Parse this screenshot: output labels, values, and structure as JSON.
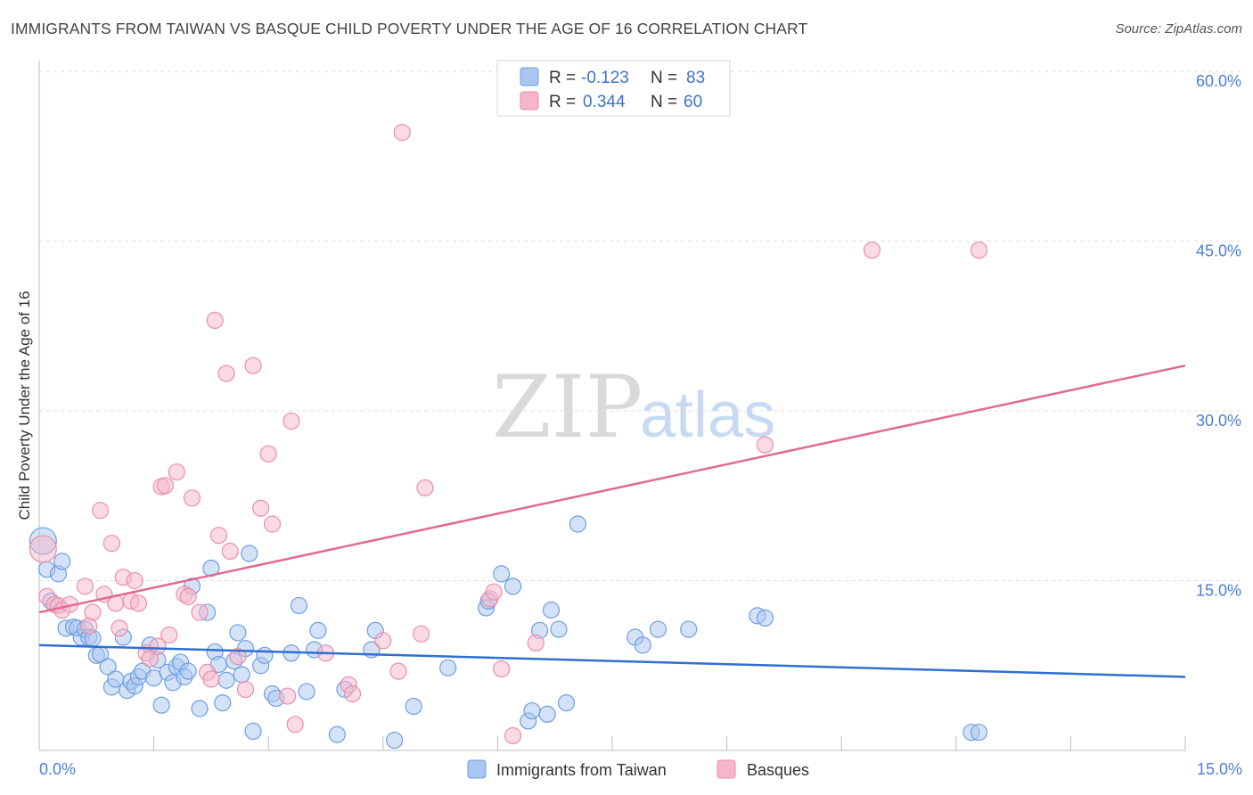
{
  "header": {
    "title": "IMMIGRANTS FROM TAIWAN VS BASQUE CHILD POVERTY UNDER THE AGE OF 16 CORRELATION CHART",
    "source": "Source: ZipAtlas.com"
  },
  "watermark": {
    "zip": "ZIP",
    "atlas": "atlas"
  },
  "legend": {
    "rows": [
      {
        "r_label": "R = ",
        "r_value": "-0.123",
        "n_label": "N = ",
        "n_value": "83",
        "color": "#a9c6f0"
      },
      {
        "r_label": "R = ",
        "r_value": "0.344",
        "n_label": "N = ",
        "n_value": "60",
        "color": "#f5b6c9"
      }
    ]
  },
  "bottom_legend": [
    {
      "label": "Immigrants from Taiwan",
      "color": "#a9c6f0"
    },
    {
      "label": "Basques",
      "color": "#f5b6c9"
    }
  ],
  "chart_data": {
    "type": "scatter",
    "title": "IMMIGRANTS FROM TAIWAN VS BASQUE CHILD POVERTY UNDER THE AGE OF 16 CORRELATION CHART",
    "xlabel": "",
    "ylabel": "Child Poverty Under the Age of 16",
    "xlim": [
      0,
      15
    ],
    "ylim": [
      0,
      60
    ],
    "x_tick_labels": [
      "0.0%",
      "15.0%"
    ],
    "y_ticks": [
      15,
      30,
      45,
      60
    ],
    "y_tick_labels": [
      "15.0%",
      "30.0%",
      "45.0%",
      "60.0%"
    ],
    "grid": true,
    "series": [
      {
        "name": "Immigrants from Taiwan",
        "color": "#6d9fe3",
        "fill": "#a9c6f0",
        "trend_color": "#2f6fd1",
        "trend": [
          [
            0,
            9.3
          ],
          [
            15,
            6.5
          ]
        ],
        "points": [
          [
            0.05,
            18.5
          ],
          [
            0.1,
            16.0
          ],
          [
            0.15,
            13.2
          ],
          [
            0.25,
            15.6
          ],
          [
            0.3,
            16.7
          ],
          [
            0.35,
            10.8
          ],
          [
            0.45,
            10.9
          ],
          [
            0.5,
            10.8
          ],
          [
            0.55,
            10.0
          ],
          [
            0.6,
            10.7
          ],
          [
            0.65,
            10.0
          ],
          [
            0.7,
            9.9
          ],
          [
            0.75,
            8.4
          ],
          [
            0.8,
            8.5
          ],
          [
            0.9,
            7.4
          ],
          [
            0.95,
            5.6
          ],
          [
            1.0,
            6.3
          ],
          [
            1.1,
            10.0
          ],
          [
            1.15,
            5.3
          ],
          [
            1.2,
            6.1
          ],
          [
            1.25,
            5.7
          ],
          [
            1.3,
            6.5
          ],
          [
            1.35,
            7.0
          ],
          [
            1.45,
            9.3
          ],
          [
            1.5,
            6.4
          ],
          [
            1.55,
            8.0
          ],
          [
            1.6,
            4.0
          ],
          [
            1.68,
            6.9
          ],
          [
            1.75,
            6.0
          ],
          [
            1.8,
            7.4
          ],
          [
            1.85,
            7.8
          ],
          [
            1.9,
            6.5
          ],
          [
            1.95,
            7.0
          ],
          [
            2.0,
            14.5
          ],
          [
            2.1,
            3.7
          ],
          [
            2.2,
            12.2
          ],
          [
            2.25,
            16.1
          ],
          [
            2.3,
            8.7
          ],
          [
            2.35,
            7.6
          ],
          [
            2.4,
            4.2
          ],
          [
            2.45,
            6.2
          ],
          [
            2.6,
            10.4
          ],
          [
            2.55,
            7.9
          ],
          [
            2.65,
            6.7
          ],
          [
            2.7,
            9.0
          ],
          [
            2.75,
            17.4
          ],
          [
            2.8,
            1.7
          ],
          [
            2.9,
            7.5
          ],
          [
            2.95,
            8.4
          ],
          [
            3.05,
            5.0
          ],
          [
            3.1,
            4.6
          ],
          [
            3.3,
            8.6
          ],
          [
            3.4,
            12.8
          ],
          [
            3.5,
            5.2
          ],
          [
            3.6,
            8.9
          ],
          [
            3.65,
            10.6
          ],
          [
            3.9,
            1.4
          ],
          [
            4.0,
            5.4
          ],
          [
            4.35,
            8.9
          ],
          [
            4.4,
            10.6
          ],
          [
            4.65,
            0.9
          ],
          [
            4.9,
            3.9
          ],
          [
            5.35,
            7.3
          ],
          [
            5.85,
            12.6
          ],
          [
            5.88,
            13.2
          ],
          [
            6.05,
            15.6
          ],
          [
            6.2,
            14.5
          ],
          [
            6.4,
            2.6
          ],
          [
            6.45,
            3.5
          ],
          [
            6.55,
            10.6
          ],
          [
            6.65,
            3.2
          ],
          [
            6.7,
            12.4
          ],
          [
            6.8,
            10.7
          ],
          [
            6.9,
            4.2
          ],
          [
            7.05,
            20.0
          ],
          [
            7.8,
            10.0
          ],
          [
            7.9,
            9.3
          ],
          [
            8.1,
            10.7
          ],
          [
            8.5,
            10.7
          ],
          [
            9.4,
            11.9
          ],
          [
            9.5,
            11.7
          ],
          [
            12.2,
            1.6
          ],
          [
            12.3,
            1.6
          ]
        ]
      },
      {
        "name": "Basques",
        "color": "#ea8faa",
        "fill": "#f5b6c9",
        "trend_color": "#e16a92",
        "trend": [
          [
            0,
            12.2
          ],
          [
            15,
            34.0
          ]
        ],
        "points": [
          [
            0.05,
            17.8
          ],
          [
            0.1,
            13.6
          ],
          [
            0.2,
            12.9
          ],
          [
            0.25,
            12.8
          ],
          [
            0.3,
            12.4
          ],
          [
            0.4,
            12.9
          ],
          [
            0.6,
            14.5
          ],
          [
            0.65,
            11.0
          ],
          [
            0.7,
            12.2
          ],
          [
            0.8,
            21.2
          ],
          [
            0.85,
            13.8
          ],
          [
            0.95,
            18.3
          ],
          [
            1.0,
            13.0
          ],
          [
            1.05,
            10.8
          ],
          [
            1.1,
            15.3
          ],
          [
            1.2,
            13.2
          ],
          [
            1.25,
            15.0
          ],
          [
            1.3,
            13.0
          ],
          [
            1.4,
            8.6
          ],
          [
            1.45,
            8.1
          ],
          [
            1.55,
            9.2
          ],
          [
            1.6,
            23.3
          ],
          [
            1.65,
            23.4
          ],
          [
            1.7,
            10.2
          ],
          [
            1.8,
            24.6
          ],
          [
            1.9,
            13.8
          ],
          [
            1.95,
            13.6
          ],
          [
            2.0,
            22.3
          ],
          [
            2.1,
            12.2
          ],
          [
            2.2,
            6.9
          ],
          [
            2.25,
            6.3
          ],
          [
            2.3,
            38.0
          ],
          [
            2.35,
            19.0
          ],
          [
            2.45,
            33.3
          ],
          [
            2.5,
            17.6
          ],
          [
            2.6,
            8.3
          ],
          [
            2.7,
            5.4
          ],
          [
            2.8,
            34.0
          ],
          [
            2.9,
            21.4
          ],
          [
            3.0,
            26.2
          ],
          [
            3.05,
            20.0
          ],
          [
            3.25,
            4.8
          ],
          [
            3.3,
            29.1
          ],
          [
            3.35,
            2.3
          ],
          [
            3.75,
            8.6
          ],
          [
            4.05,
            5.8
          ],
          [
            4.1,
            5.0
          ],
          [
            4.5,
            9.7
          ],
          [
            4.7,
            7.0
          ],
          [
            4.75,
            54.6
          ],
          [
            5.0,
            10.3
          ],
          [
            5.05,
            23.2
          ],
          [
            5.9,
            13.4
          ],
          [
            5.95,
            14.0
          ],
          [
            6.05,
            7.2
          ],
          [
            6.2,
            1.3
          ],
          [
            6.5,
            9.5
          ],
          [
            9.5,
            27.0
          ],
          [
            10.9,
            44.2
          ],
          [
            12.3,
            44.2
          ]
        ]
      }
    ]
  }
}
